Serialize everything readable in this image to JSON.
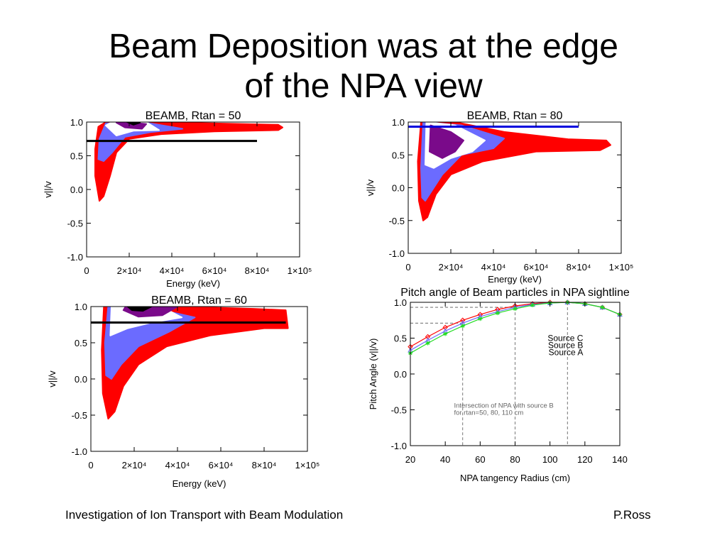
{
  "slide": {
    "title_line1": "Beam Deposition was at the edge",
    "title_line2": "of the NPA view",
    "footer_left": "Investigation of Ion Transport with Beam Modulation",
    "footer_right": "P.Ross"
  },
  "colors": {
    "red": "#ff0000",
    "blue": "#6b6bff",
    "white": "#ffffff",
    "purple": "#7a0a8a",
    "black": "#000000",
    "line_blue": "#0000dd",
    "source_c": "#ff0000",
    "source_b": "#6b6bff",
    "source_a": "#22dd22"
  },
  "chart_data": [
    {
      "type": "heatmap",
      "title": "BEAMB, Rtan = 50",
      "xlabel": "Energy (keV)",
      "ylabel": "v||/v",
      "xlim": [
        0,
        100000
      ],
      "ylim": [
        -1.0,
        1.0
      ],
      "x_ticks": [
        {
          "value": 0,
          "label": "0"
        },
        {
          "value": 20000,
          "label": "2×10⁴"
        },
        {
          "value": 40000,
          "label": "4×10⁴"
        },
        {
          "value": 60000,
          "label": "6×10⁴"
        },
        {
          "value": 80000,
          "label": "8×10⁴"
        },
        {
          "value": 100000,
          "label": "1×10⁵"
        }
      ],
      "y_ticks": [
        {
          "value": 1.0,
          "label": "1.0"
        },
        {
          "value": 0.5,
          "label": "0.5"
        },
        {
          "value": 0.0,
          "label": "0.0"
        },
        {
          "value": -0.5,
          "label": "-0.5"
        },
        {
          "value": -1.0,
          "label": "-1.0"
        }
      ],
      "sightline": {
        "y": 0.72,
        "x_range": [
          0,
          80000
        ],
        "color": "#000000"
      },
      "regions": [
        {
          "level": "red",
          "points": [
            [
              6000,
              -0.17
            ],
            [
              4000,
              0.2
            ],
            [
              4000,
              0.6
            ],
            [
              5500,
              0.93
            ],
            [
              9000,
              1.0
            ],
            [
              30000,
              1.0
            ],
            [
              60000,
              0.98
            ],
            [
              90000,
              0.96
            ],
            [
              92000,
              0.92
            ],
            [
              90000,
              0.88
            ],
            [
              60000,
              0.86
            ],
            [
              35000,
              0.82
            ],
            [
              20000,
              0.75
            ],
            [
              14000,
              0.55
            ],
            [
              11000,
              0.2
            ],
            [
              8000,
              -0.1
            ]
          ]
        },
        {
          "level": "blue",
          "points": [
            [
              5500,
              0.45
            ],
            [
              6000,
              0.75
            ],
            [
              9000,
              0.98
            ],
            [
              28000,
              0.99
            ],
            [
              45000,
              0.9
            ],
            [
              30000,
              0.85
            ],
            [
              18000,
              0.78
            ],
            [
              12000,
              0.55
            ],
            [
              8000,
              0.42
            ]
          ]
        },
        {
          "level": "white",
          "points": [
            [
              9000,
              0.95
            ],
            [
              12000,
              1.0
            ],
            [
              28000,
              1.0
            ],
            [
              34000,
              0.88
            ],
            [
              22000,
              0.87
            ],
            [
              14000,
              0.8
            ]
          ]
        },
        {
          "level": "purple",
          "points": [
            [
              14000,
              0.99
            ],
            [
              19000,
              1.0
            ],
            [
              28000,
              0.97
            ],
            [
              26000,
              0.9
            ],
            [
              18000,
              0.92
            ]
          ]
        },
        {
          "level": "black",
          "points": [
            [
              19000,
              1.0
            ],
            [
              25000,
              0.99
            ],
            [
              22000,
              0.96
            ]
          ]
        }
      ]
    },
    {
      "type": "heatmap",
      "title": "BEAMB, Rtan = 80",
      "xlabel": "Energy (keV)",
      "ylabel": "v||/v",
      "xlim": [
        0,
        100000
      ],
      "ylim": [
        -1.0,
        1.0
      ],
      "x_ticks": [
        {
          "value": 0,
          "label": "0"
        },
        {
          "value": 20000,
          "label": "2×10⁴"
        },
        {
          "value": 40000,
          "label": "4×10⁴"
        },
        {
          "value": 60000,
          "label": "6×10⁴"
        },
        {
          "value": 80000,
          "label": "8×10⁴"
        },
        {
          "value": 100000,
          "label": "1×10⁵"
        }
      ],
      "y_ticks": [
        {
          "value": 1.0,
          "label": "1.0"
        },
        {
          "value": 0.5,
          "label": "0.5"
        },
        {
          "value": 0.0,
          "label": "0.0"
        },
        {
          "value": -0.5,
          "label": "-0.5"
        },
        {
          "value": -1.0,
          "label": "-1.0"
        }
      ],
      "sightline": {
        "y": 0.93,
        "x_range": [
          0,
          80000
        ],
        "color": "#0000dd"
      },
      "regions": [
        {
          "level": "red",
          "points": [
            [
              7000,
              -0.5
            ],
            [
              5000,
              -0.2
            ],
            [
              4500,
              0.4
            ],
            [
              6000,
              1.0
            ],
            [
              22000,
              1.0
            ],
            [
              45000,
              0.85
            ],
            [
              75000,
              0.74
            ],
            [
              93000,
              0.72
            ],
            [
              95000,
              0.65
            ],
            [
              90000,
              0.57
            ],
            [
              60000,
              0.55
            ],
            [
              35000,
              0.4
            ],
            [
              20000,
              0.2
            ],
            [
              13000,
              -0.1
            ],
            [
              9000,
              -0.45
            ]
          ]
        },
        {
          "level": "blue",
          "points": [
            [
              6500,
              -0.15
            ],
            [
              6000,
              0.3
            ],
            [
              7000,
              1.0
            ],
            [
              25000,
              0.95
            ],
            [
              45000,
              0.75
            ],
            [
              40000,
              0.6
            ],
            [
              25000,
              0.5
            ],
            [
              16000,
              0.2
            ],
            [
              11000,
              -0.05
            ],
            [
              8000,
              -0.2
            ]
          ]
        },
        {
          "level": "white",
          "points": [
            [
              8000,
              0.35
            ],
            [
              8500,
              1.0
            ],
            [
              22000,
              0.95
            ],
            [
              36000,
              0.72
            ],
            [
              30000,
              0.55
            ],
            [
              20000,
              0.45
            ],
            [
              12000,
              0.3
            ]
          ]
        },
        {
          "level": "purple",
          "points": [
            [
              10000,
              0.55
            ],
            [
              10500,
              0.95
            ],
            [
              20000,
              0.85
            ],
            [
              26000,
              0.72
            ],
            [
              22000,
              0.55
            ],
            [
              16000,
              0.45
            ]
          ]
        }
      ]
    },
    {
      "type": "heatmap",
      "title": "BEAMB, Rtan = 60",
      "xlabel": "Energy (keV)",
      "ylabel": "v||/v",
      "xlim": [
        0,
        100000
      ],
      "ylim": [
        -1.0,
        1.0
      ],
      "x_ticks": [
        {
          "value": 0,
          "label": "0"
        },
        {
          "value": 20000,
          "label": "2×10⁴"
        },
        {
          "value": 40000,
          "label": "4×10⁴"
        },
        {
          "value": 60000,
          "label": "6×10⁴"
        },
        {
          "value": 80000,
          "label": "8×10⁴"
        },
        {
          "value": 100000,
          "label": "1×10⁵"
        }
      ],
      "y_ticks": [
        {
          "value": 1.0,
          "label": "1.0"
        },
        {
          "value": 0.5,
          "label": "0.5"
        },
        {
          "value": 0.0,
          "label": "0.0"
        },
        {
          "value": -0.5,
          "label": "-0.5"
        },
        {
          "value": -1.0,
          "label": "-1.0"
        }
      ],
      "sightline": {
        "y": 0.78,
        "x_range": [
          0,
          90000
        ],
        "color": "#000000"
      },
      "regions": [
        {
          "level": "red",
          "points": [
            [
              8000,
              -0.55
            ],
            [
              5500,
              -0.2
            ],
            [
              5000,
              0.4
            ],
            [
              6000,
              1.0
            ],
            [
              40000,
              1.0
            ],
            [
              75000,
              0.97
            ],
            [
              90000,
              0.95
            ],
            [
              91000,
              0.7
            ],
            [
              80000,
              0.7
            ],
            [
              55000,
              0.6
            ],
            [
              35000,
              0.45
            ],
            [
              22000,
              0.2
            ],
            [
              15000,
              -0.1
            ],
            [
              11000,
              -0.45
            ]
          ]
        },
        {
          "level": "blue",
          "points": [
            [
              7000,
              0.05
            ],
            [
              6500,
              0.5
            ],
            [
              8000,
              1.0
            ],
            [
              30000,
              0.97
            ],
            [
              48000,
              0.85
            ],
            [
              36000,
              0.65
            ],
            [
              22000,
              0.45
            ],
            [
              14000,
              0.2
            ],
            [
              9500,
              0.0
            ]
          ]
        },
        {
          "level": "white",
          "points": [
            [
              9000,
              0.6
            ],
            [
              9500,
              1.0
            ],
            [
              35000,
              0.96
            ],
            [
              42000,
              0.85
            ],
            [
              28000,
              0.78
            ],
            [
              17000,
              0.7
            ]
          ]
        },
        {
          "level": "purple",
          "points": [
            [
              15000,
              0.95
            ],
            [
              16000,
              1.0
            ],
            [
              40000,
              1.0
            ],
            [
              33000,
              0.88
            ],
            [
              22000,
              0.86
            ]
          ]
        },
        {
          "level": "black",
          "points": [
            [
              17000,
              1.0
            ],
            [
              28000,
              1.0
            ],
            [
              24000,
              0.94
            ],
            [
              19000,
              0.95
            ]
          ]
        }
      ]
    },
    {
      "type": "line",
      "title": "Pitch angle of Beam particles in NPA sightline",
      "xlabel": "NPA tangency Radius (cm)",
      "ylabel": "Pitch Angle (v||/v)",
      "xlim": [
        20,
        140
      ],
      "ylim": [
        -1.0,
        1.0
      ],
      "x_ticks": [
        {
          "value": 20,
          "label": "20"
        },
        {
          "value": 40,
          "label": "40"
        },
        {
          "value": 60,
          "label": "60"
        },
        {
          "value": 80,
          "label": "80"
        },
        {
          "value": 100,
          "label": "100"
        },
        {
          "value": 120,
          "label": "120"
        },
        {
          "value": 140,
          "label": "140"
        }
      ],
      "y_ticks": [
        {
          "value": 1.0,
          "label": "1.0"
        },
        {
          "value": 0.5,
          "label": "0.5"
        },
        {
          "value": 0.0,
          "label": "0.0"
        },
        {
          "value": -0.5,
          "label": "-0.5"
        },
        {
          "value": -1.0,
          "label": "-1.0"
        }
      ],
      "x": [
        20,
        30,
        40,
        50,
        60,
        70,
        80,
        90,
        100,
        110,
        120,
        130,
        140
      ],
      "series": [
        {
          "name": "Source C",
          "color": "#ff0000",
          "marker": "diamond",
          "values": [
            0.38,
            0.52,
            0.65,
            0.75,
            0.83,
            0.9,
            0.95,
            0.98,
            1.0,
            1.0,
            0.98,
            0.93,
            0.83
          ]
        },
        {
          "name": "Source B",
          "color": "#6b6bff",
          "marker": "triangle",
          "values": [
            0.33,
            0.47,
            0.6,
            0.71,
            0.8,
            0.87,
            0.93,
            0.97,
            0.99,
            1.0,
            0.98,
            0.93,
            0.83
          ]
        },
        {
          "name": "Source A",
          "color": "#22dd22",
          "marker": "star",
          "values": [
            0.29,
            0.43,
            0.56,
            0.67,
            0.77,
            0.85,
            0.91,
            0.96,
            0.99,
            1.0,
            0.98,
            0.93,
            0.83
          ]
        }
      ],
      "guides": [
        {
          "x": 50,
          "y": 0.71
        },
        {
          "x": 80,
          "y": 0.93
        },
        {
          "x": 110,
          "y": 1.0
        }
      ],
      "annotation_line1": "Intersection of NPA with source B",
      "annotation_line2": "for rtan=50, 80, 110 cm"
    }
  ]
}
